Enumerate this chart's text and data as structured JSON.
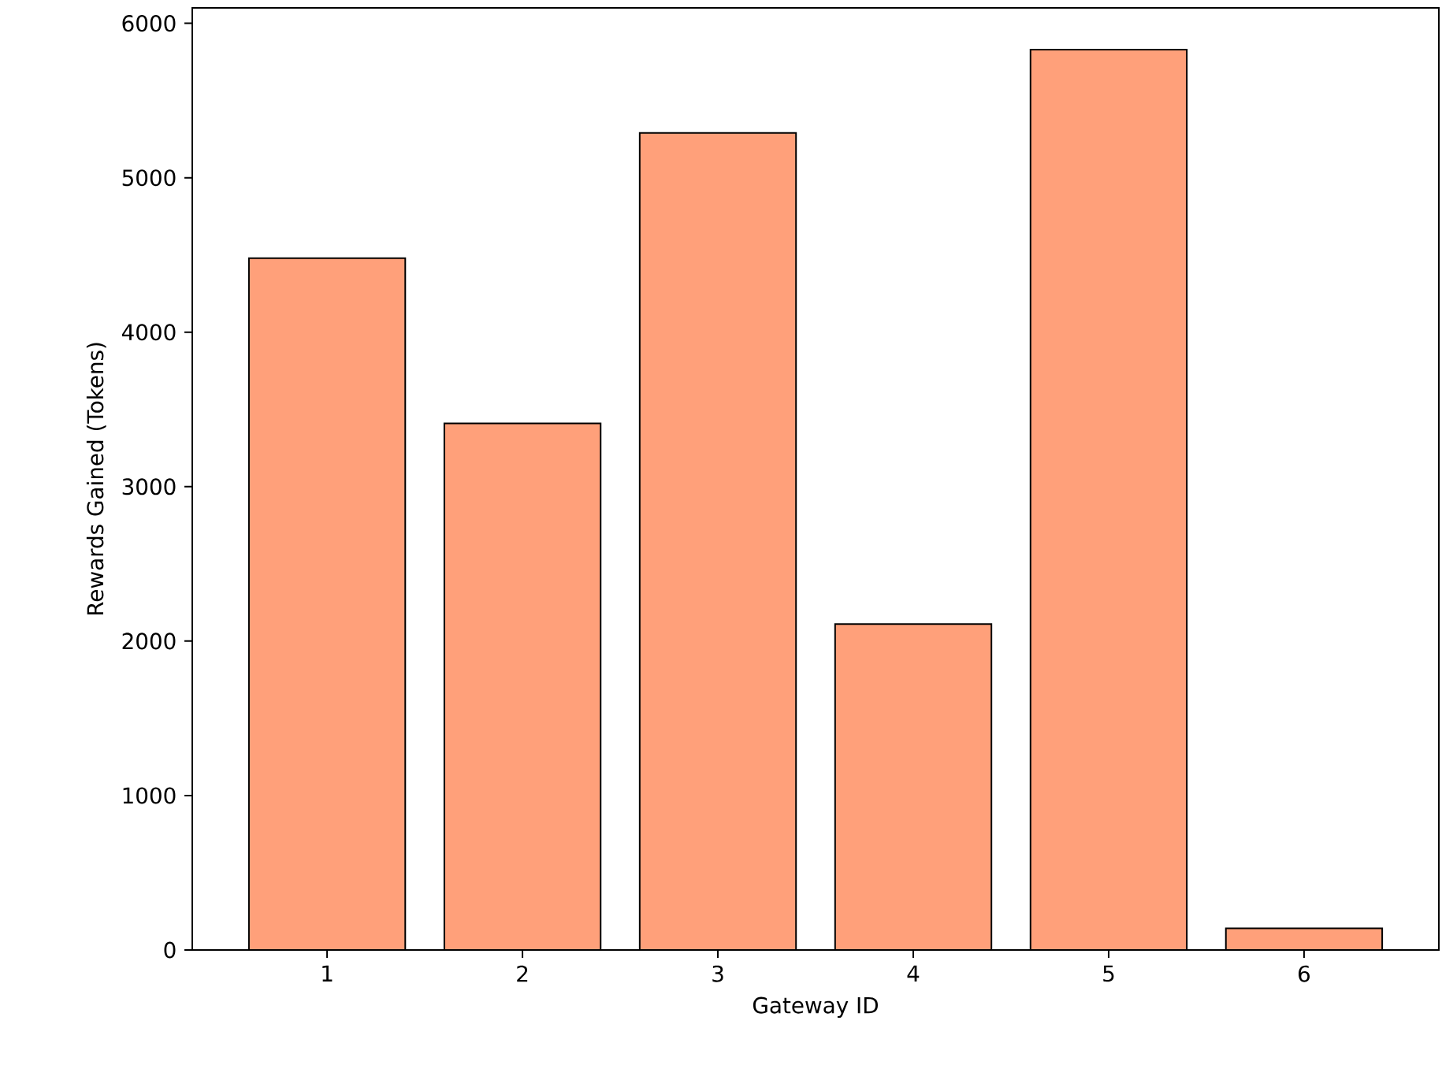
{
  "chart_data": {
    "type": "bar",
    "xlabel": "Gateway ID",
    "ylabel": "Rewards Gained (Tokens)",
    "categories": [
      "1",
      "2",
      "3",
      "4",
      "5",
      "6"
    ],
    "values": [
      4480,
      3410,
      5290,
      2110,
      5830,
      140
    ],
    "color": "#ffa07a",
    "ylim": [
      0,
      6100
    ],
    "yticks": [
      0,
      1000,
      2000,
      3000,
      4000,
      5000,
      6000
    ]
  }
}
